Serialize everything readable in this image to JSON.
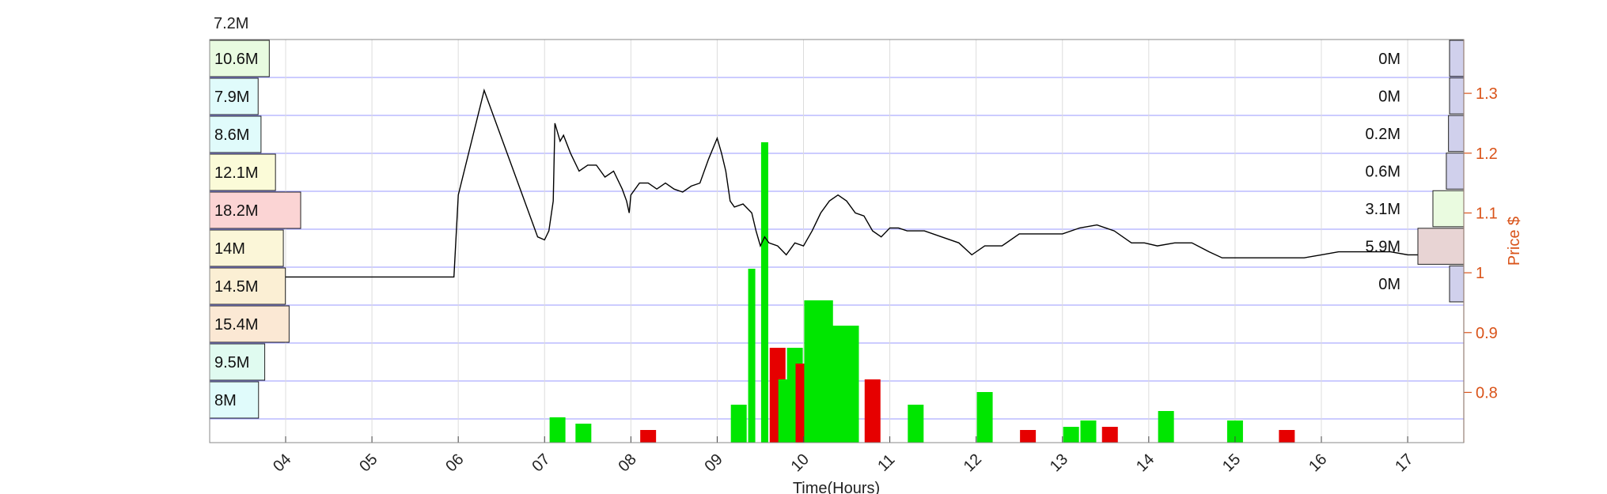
{
  "chart_data": {
    "type": "line",
    "title": "",
    "top_left_label": "7.2M",
    "xlabel": "Time(Hours)",
    "ylabel": "Price $",
    "x_ticks": [
      "04",
      "05",
      "06",
      "07",
      "08",
      "09",
      "10",
      "11",
      "12",
      "13",
      "14",
      "15",
      "16",
      "17"
    ],
    "xlim": [
      3.12,
      17.65
    ],
    "ylim": [
      0.716,
      1.39
    ],
    "y_ticks": [
      0.8,
      0.9,
      1,
      1.1,
      1.2,
      1.3
    ],
    "grid": true,
    "colors": {
      "price": "#000000",
      "axis_right": "#d95319",
      "grid": "#7f7fff",
      "volume_up": "#00e600",
      "volume_down": "#e60000"
    },
    "left_volume_profile": [
      {
        "label": "10.6M",
        "value": 10.6,
        "color": "#e8fbe0"
      },
      {
        "label": "7.9M",
        "value": 7.9,
        "color": "#e0fbfb"
      },
      {
        "label": "8.6M",
        "value": 8.6,
        "color": "#e0fbfb"
      },
      {
        "label": "12.1M",
        "value": 12.1,
        "color": "#fbfbd8"
      },
      {
        "label": "18.2M",
        "value": 18.2,
        "color": "#fbd4d4"
      },
      {
        "label": "14M",
        "value": 14.0,
        "color": "#fbf6d8"
      },
      {
        "label": "14.5M",
        "value": 14.5,
        "color": "#fbefd4"
      },
      {
        "label": "15.4M",
        "value": 15.4,
        "color": "#fbe8d4"
      },
      {
        "label": "9.5M",
        "value": 9.5,
        "color": "#e0fbf0"
      },
      {
        "label": "8M",
        "value": 8.0,
        "color": "#e0fbfb"
      }
    ],
    "right_volume_profile": [
      {
        "label": "0M",
        "value": 0.0,
        "color": "#d0d0ec"
      },
      {
        "label": "0M",
        "value": 0.0,
        "color": "#d0d0ec"
      },
      {
        "label": "0.2M",
        "value": 0.2,
        "color": "#d0d0ec"
      },
      {
        "label": "0.6M",
        "value": 0.6,
        "color": "#d0d0ec"
      },
      {
        "label": "3.1M",
        "value": 3.1,
        "color": "#eafbe0"
      },
      {
        "label": "5.9M",
        "value": 5.9,
        "color": "#e8d4d4"
      },
      {
        "label": "0M",
        "value": 0.0,
        "color": "#d0d0ec"
      }
    ],
    "series": [
      {
        "x": [
          3.98,
          5.95,
          6.0,
          6.3,
          6.92,
          7.0,
          7.05,
          7.1,
          7.12,
          7.18,
          7.22,
          7.3,
          7.4,
          7.5,
          7.6,
          7.7,
          7.8,
          7.9,
          7.95,
          7.98,
          8.0,
          8.1,
          8.2,
          8.3,
          8.4,
          8.5,
          8.6,
          8.7,
          8.8,
          8.9,
          9.0,
          9.05,
          9.1,
          9.15,
          9.2,
          9.3,
          9.4,
          9.45,
          9.5,
          9.55,
          9.6,
          9.7,
          9.8,
          9.9,
          10.0,
          10.1,
          10.2,
          10.3,
          10.4,
          10.5,
          10.6,
          10.7,
          10.8,
          10.9,
          11.0,
          11.1,
          11.2,
          11.4,
          11.6,
          11.8,
          11.95,
          12.1,
          12.3,
          12.5,
          12.8,
          13.0,
          13.2,
          13.4,
          13.6,
          13.8,
          13.95,
          14.1,
          14.3,
          14.5,
          14.7,
          14.85,
          15.0,
          15.2,
          15.5,
          15.8,
          16.0,
          16.2,
          16.4,
          16.6,
          16.8,
          17.0,
          17.2
        ],
        "y": [
          0.993,
          0.993,
          1.13,
          1.305,
          1.06,
          1.055,
          1.07,
          1.12,
          1.25,
          1.22,
          1.23,
          1.2,
          1.17,
          1.18,
          1.18,
          1.16,
          1.17,
          1.14,
          1.12,
          1.1,
          1.13,
          1.15,
          1.15,
          1.14,
          1.15,
          1.14,
          1.135,
          1.145,
          1.15,
          1.19,
          1.225,
          1.2,
          1.17,
          1.12,
          1.11,
          1.115,
          1.1,
          1.07,
          1.045,
          1.06,
          1.05,
          1.045,
          1.03,
          1.05,
          1.045,
          1.07,
          1.1,
          1.12,
          1.13,
          1.12,
          1.1,
          1.095,
          1.07,
          1.06,
          1.075,
          1.075,
          1.07,
          1.07,
          1.06,
          1.05,
          1.03,
          1.045,
          1.045,
          1.065,
          1.065,
          1.065,
          1.075,
          1.08,
          1.07,
          1.05,
          1.05,
          1.045,
          1.05,
          1.05,
          1.035,
          1.025,
          1.025,
          1.025,
          1.025,
          1.025,
          1.03,
          1.035,
          1.035,
          1.035,
          1.035,
          1.03,
          1.03
        ]
      }
    ],
    "volume_bars": [
      {
        "x": 7.15,
        "height": 0.08,
        "color": "green"
      },
      {
        "x": 7.45,
        "height": 0.06,
        "color": "green"
      },
      {
        "x": 8.2,
        "height": 0.04,
        "color": "red"
      },
      {
        "x": 9.25,
        "height": 0.12,
        "color": "green"
      },
      {
        "x": 9.4,
        "height": 0.55,
        "color": "green"
      },
      {
        "x": 9.55,
        "height": 0.95,
        "color": "green"
      },
      {
        "x": 9.7,
        "height": 0.3,
        "color": "red"
      },
      {
        "x": 9.8,
        "height": 0.2,
        "color": "green"
      },
      {
        "x": 9.9,
        "height": 0.3,
        "color": "green"
      },
      {
        "x": 10.0,
        "height": 0.25,
        "color": "red"
      },
      {
        "x": 10.1,
        "height": 0.45,
        "color": "green"
      },
      {
        "x": 10.25,
        "height": 0.45,
        "color": "green"
      },
      {
        "x": 10.4,
        "height": 0.37,
        "color": "green"
      },
      {
        "x": 10.55,
        "height": 0.37,
        "color": "green"
      },
      {
        "x": 10.8,
        "height": 0.2,
        "color": "red"
      },
      {
        "x": 11.3,
        "height": 0.12,
        "color": "green"
      },
      {
        "x": 12.1,
        "height": 0.16,
        "color": "green"
      },
      {
        "x": 12.6,
        "height": 0.04,
        "color": "red"
      },
      {
        "x": 13.1,
        "height": 0.05,
        "color": "green"
      },
      {
        "x": 13.3,
        "height": 0.07,
        "color": "green"
      },
      {
        "x": 13.55,
        "height": 0.05,
        "color": "red"
      },
      {
        "x": 14.2,
        "height": 0.1,
        "color": "green"
      },
      {
        "x": 15.0,
        "height": 0.07,
        "color": "green"
      },
      {
        "x": 15.6,
        "height": 0.04,
        "color": "red"
      }
    ]
  }
}
